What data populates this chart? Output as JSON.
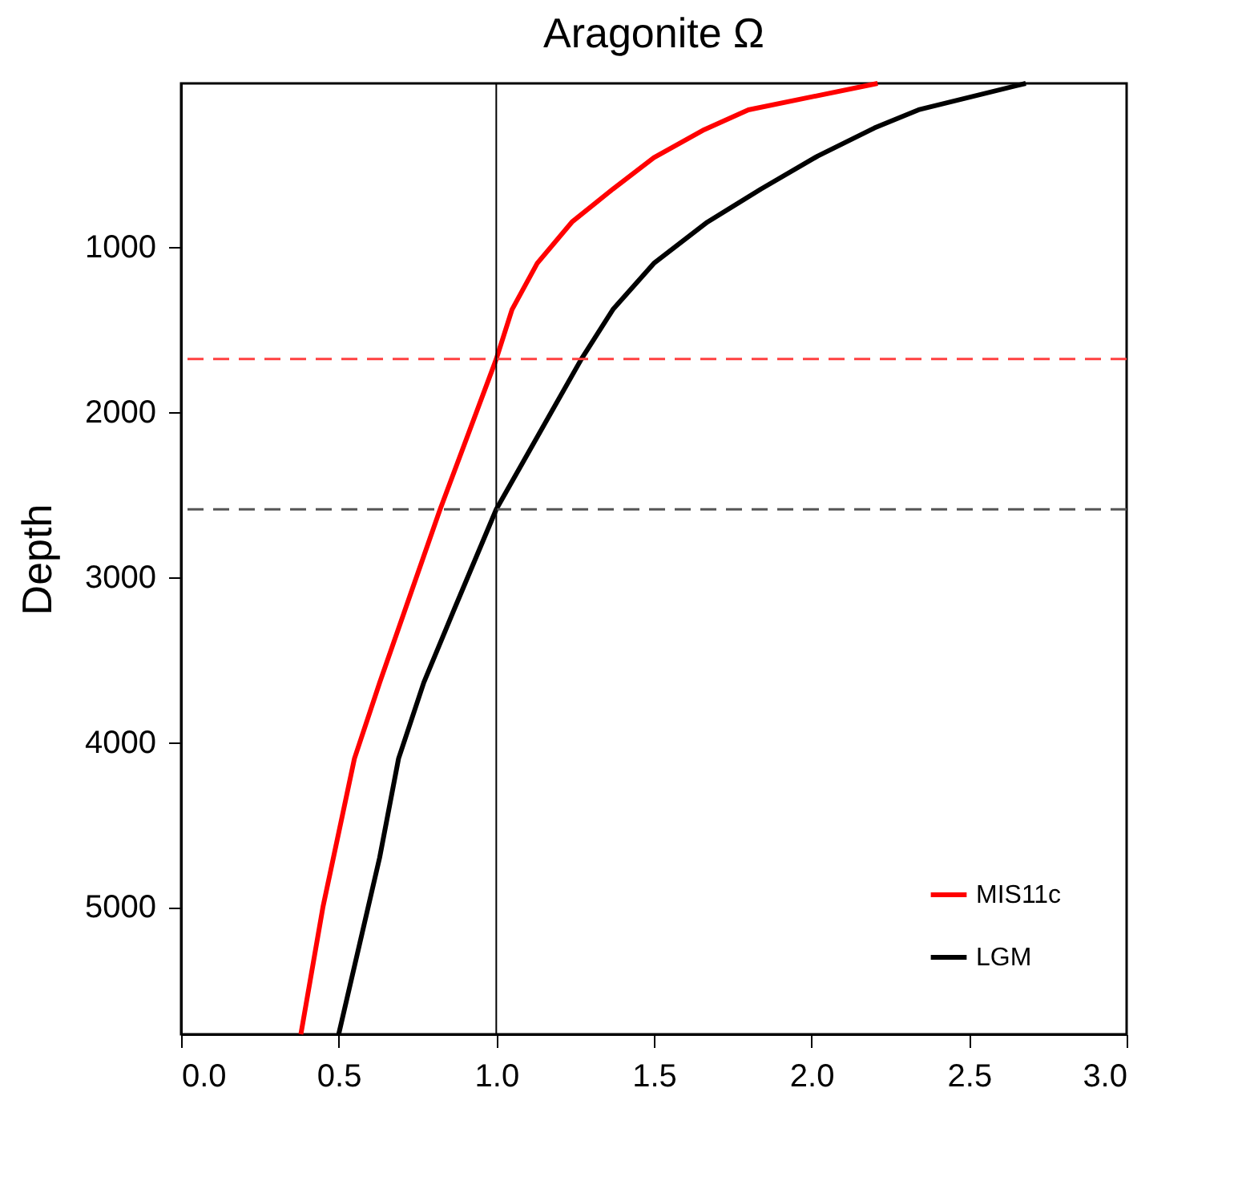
{
  "chart_data": {
    "type": "line",
    "title": "Aragonite  Ω",
    "ylabel": "Depth",
    "xlim": [
      0,
      3
    ],
    "xticks": [
      {
        "value": 0,
        "label": "0.0"
      },
      {
        "value": 0.5,
        "label": "0.5"
      },
      {
        "value": 1,
        "label": "1.0"
      },
      {
        "value": 1.5,
        "label": "1.5"
      },
      {
        "value": 2,
        "label": "2.0"
      },
      {
        "value": 2.5,
        "label": "2.5"
      },
      {
        "value": 3,
        "label": "3.0"
      }
    ],
    "ylim": [
      5770,
      10
    ],
    "yticks": [
      1000,
      2000,
      3000,
      4000,
      5000
    ],
    "series": [
      {
        "name": "MIS11c",
        "color": "#ff0000",
        "x": [
          2.21,
          1.8,
          1.66,
          1.5,
          1.37,
          1.24,
          1.13,
          1.05,
          1.0,
          0.82,
          0.63,
          0.55,
          0.45,
          0.38
        ],
        "values": [
          10,
          170,
          290,
          460,
          650,
          850,
          1100,
          1380,
          1680,
          2600,
          3640,
          4100,
          5000,
          5770
        ]
      },
      {
        "name": "LGM",
        "color": "#000000",
        "x": [
          2.68,
          2.34,
          2.2,
          2.02,
          1.84,
          1.67,
          1.5,
          1.37,
          1.27,
          1.0,
          0.87,
          0.77,
          0.69,
          0.63,
          0.5
        ],
        "values": [
          10,
          170,
          280,
          450,
          650,
          850,
          1100,
          1380,
          1680,
          2590,
          3180,
          3640,
          4100,
          4700,
          5770
        ]
      }
    ],
    "ref_lines": [
      {
        "axis": "y",
        "value": 1680,
        "color": "#ff4040",
        "line_style": "dashed"
      },
      {
        "axis": "y",
        "value": 2590,
        "color": "#555555",
        "line_style": "dashed"
      },
      {
        "axis": "x",
        "value": 1,
        "color": "#000000",
        "line_style": "solid"
      }
    ],
    "legend": "bottom right",
    "grid": false,
    "line_style": "solid",
    "marker": "none"
  }
}
